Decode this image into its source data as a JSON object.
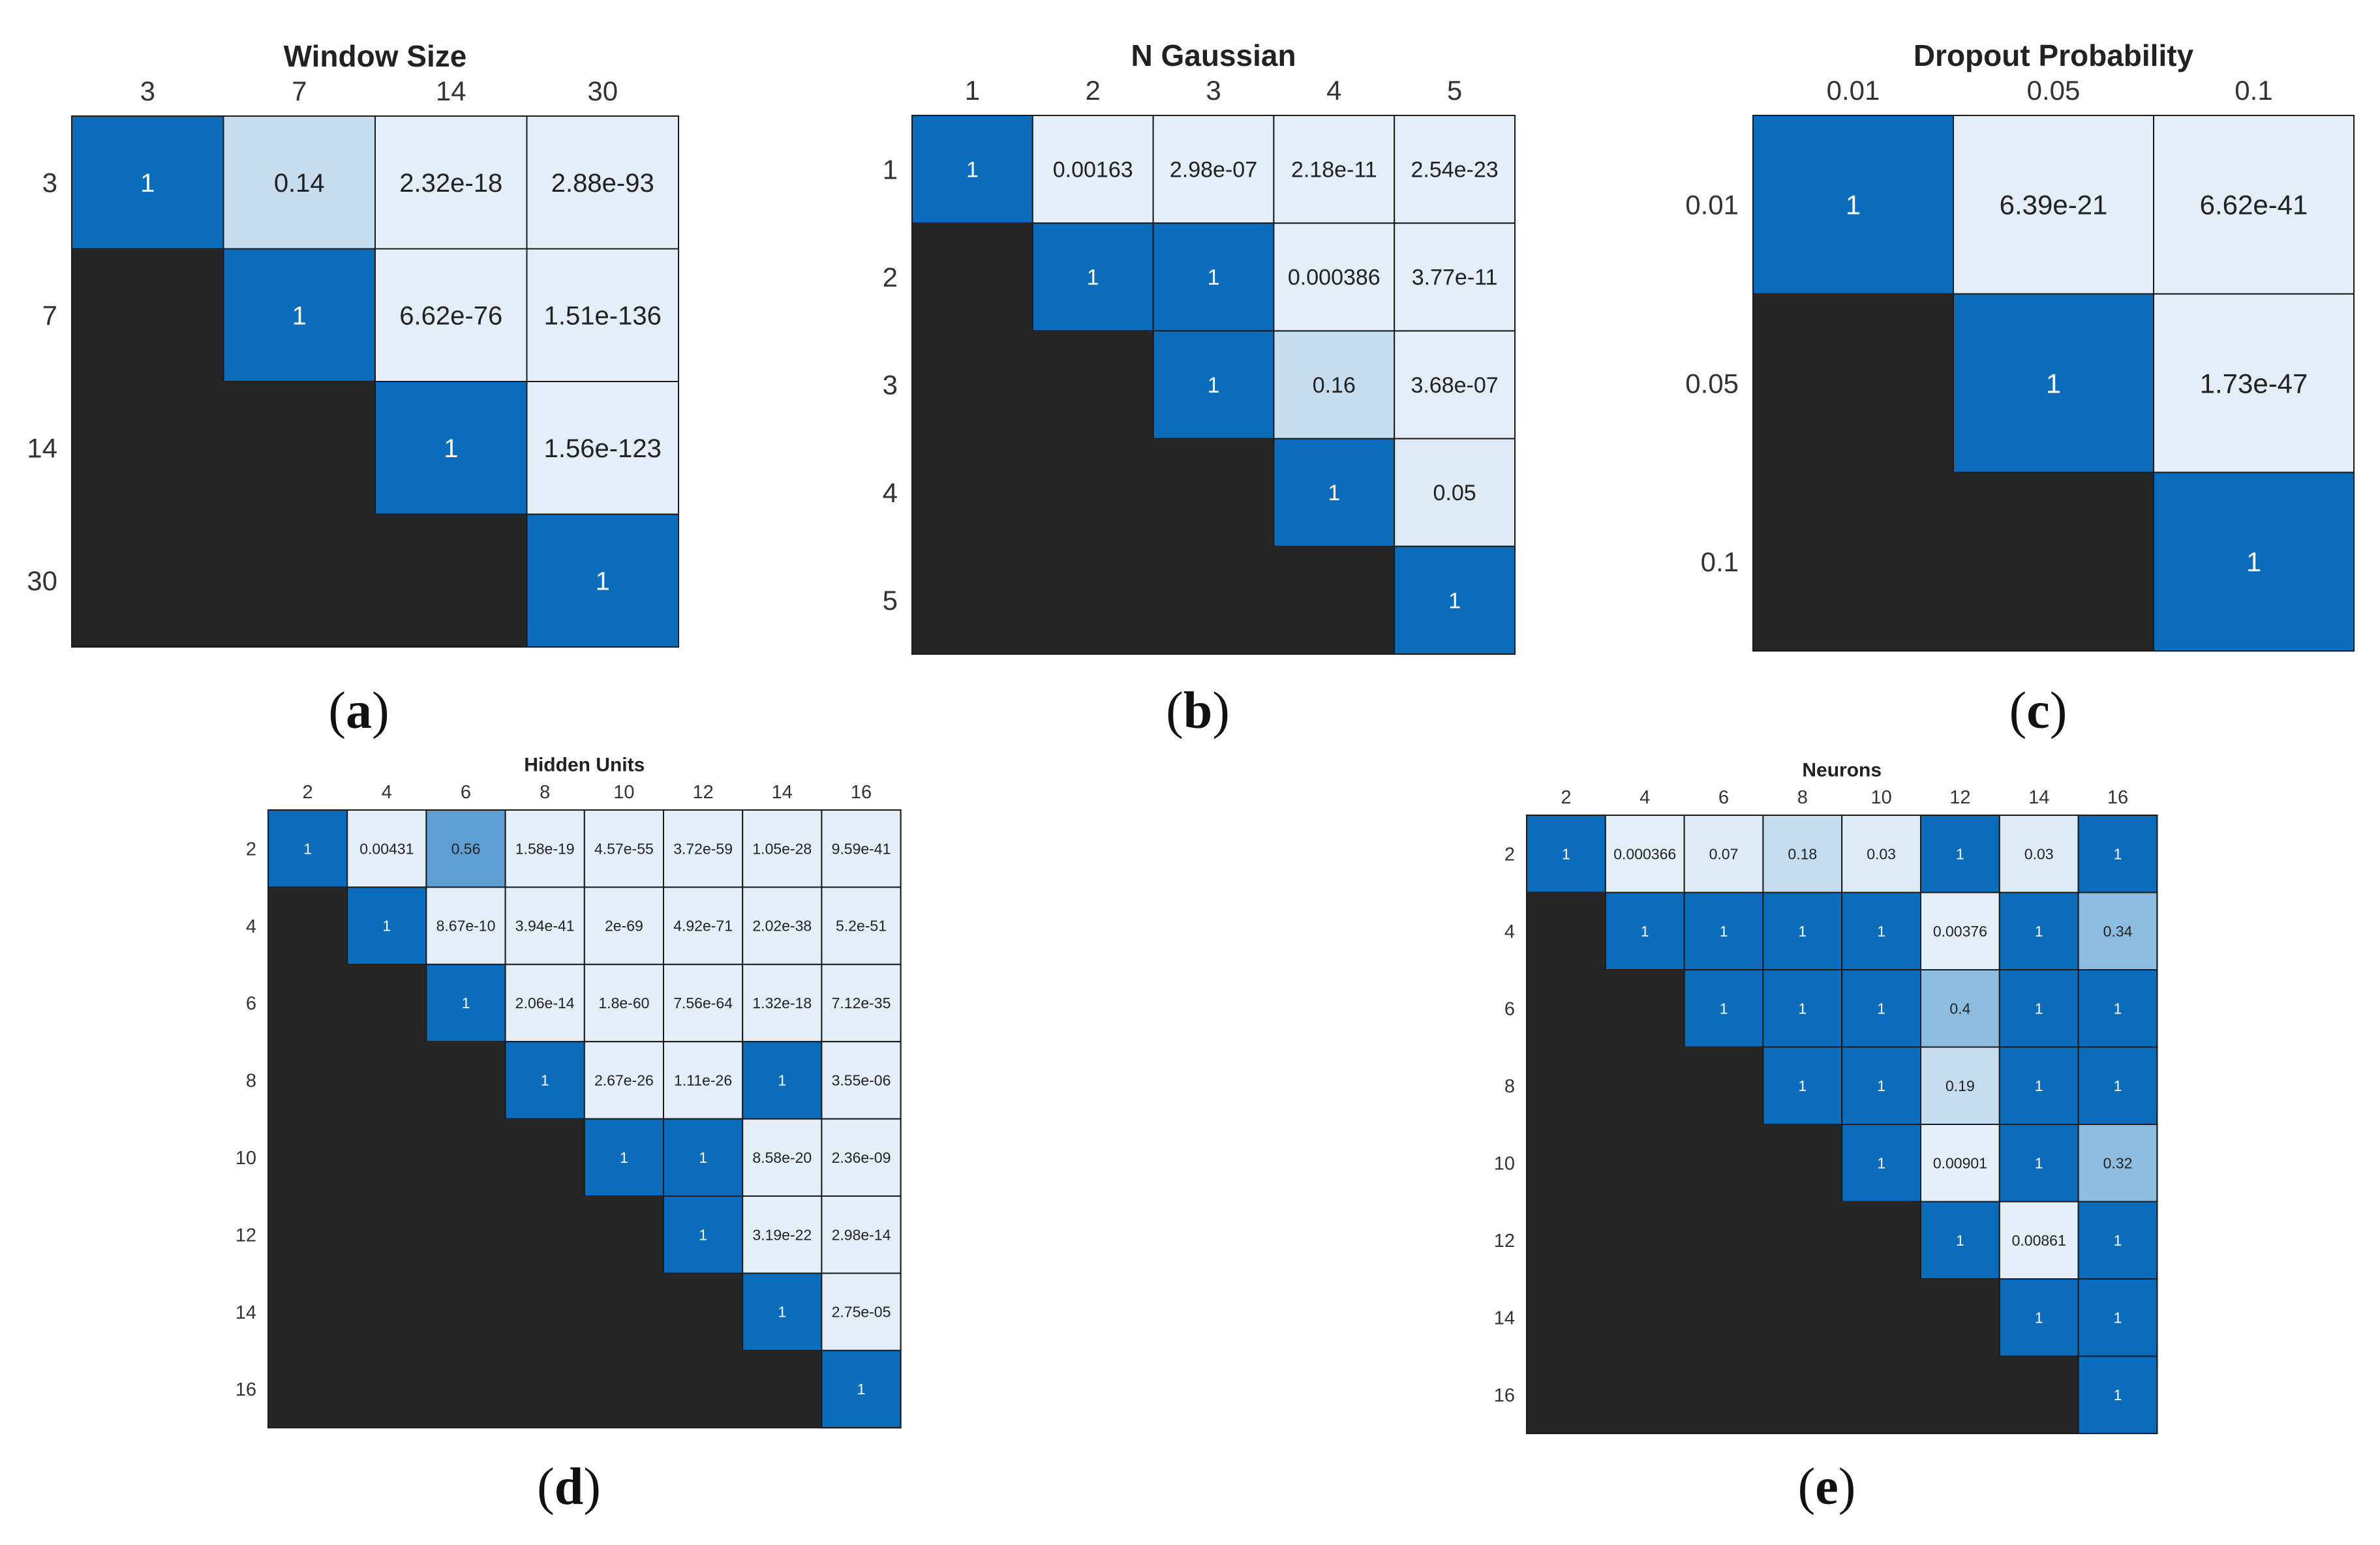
{
  "colors": {
    "lower_triangle": "#262626",
    "grid_line": "#1a1a1a",
    "value_one": "#0b6cbb",
    "value_high": "#5d9fd2",
    "value_mid": "#8cbde0",
    "value_low": "#c6dcef",
    "value_tiny": "#deebf7",
    "value_zero": "#e3eef9",
    "text_dark": "#222222",
    "text_light": "#ffffff"
  },
  "chart_data": [
    {
      "type": "heatmap",
      "panel": "(a)",
      "title": "Window Size",
      "xlabel": "",
      "ylabel": "",
      "labels": [
        "3",
        "7",
        "14",
        "30"
      ],
      "values": [
        [
          "1",
          "0.14",
          "2.32e-18",
          "2.88e-93"
        ],
        [
          "",
          "1",
          "6.62e-76",
          "1.51e-136"
        ],
        [
          "",
          "",
          "1",
          "1.56e-123"
        ],
        [
          "",
          "",
          "",
          "1"
        ]
      ]
    },
    {
      "type": "heatmap",
      "panel": "(b)",
      "title": "N Gaussian",
      "xlabel": "",
      "ylabel": "",
      "labels": [
        "1",
        "2",
        "3",
        "4",
        "5"
      ],
      "values": [
        [
          "1",
          "0.00163",
          "2.98e-07",
          "2.18e-11",
          "2.54e-23"
        ],
        [
          "",
          "1",
          "1",
          "0.000386",
          "3.77e-11"
        ],
        [
          "",
          "",
          "1",
          "0.16",
          "3.68e-07"
        ],
        [
          "",
          "",
          "",
          "1",
          "0.05"
        ],
        [
          "",
          "",
          "",
          "",
          "1"
        ]
      ]
    },
    {
      "type": "heatmap",
      "panel": "(c)",
      "title": "Dropout Probability",
      "xlabel": "",
      "ylabel": "",
      "labels": [
        "0.01",
        "0.05",
        "0.1"
      ],
      "values": [
        [
          "1",
          "6.39e-21",
          "6.62e-41"
        ],
        [
          "",
          "1",
          "1.73e-47"
        ],
        [
          "",
          "",
          "1"
        ]
      ]
    },
    {
      "type": "heatmap",
      "panel": "(d)",
      "title": "Hidden Units",
      "xlabel": "",
      "ylabel": "",
      "labels": [
        "2",
        "4",
        "6",
        "8",
        "10",
        "12",
        "14",
        "16"
      ],
      "values": [
        [
          "1",
          "0.00431",
          "0.56",
          "1.58e-19",
          "4.57e-55",
          "3.72e-59",
          "1.05e-28",
          "9.59e-41"
        ],
        [
          "",
          "1",
          "8.67e-10",
          "3.94e-41",
          "2e-69",
          "4.92e-71",
          "2.02e-38",
          "5.2e-51"
        ],
        [
          "",
          "",
          "1",
          "2.06e-14",
          "1.8e-60",
          "7.56e-64",
          "1.32e-18",
          "7.12e-35"
        ],
        [
          "",
          "",
          "",
          "1",
          "2.67e-26",
          "1.11e-26",
          "1",
          "3.55e-06"
        ],
        [
          "",
          "",
          "",
          "",
          "1",
          "1",
          "8.58e-20",
          "2.36e-09"
        ],
        [
          "",
          "",
          "",
          "",
          "",
          "1",
          "3.19e-22",
          "2.98e-14"
        ],
        [
          "",
          "",
          "",
          "",
          "",
          "",
          "1",
          "2.75e-05"
        ],
        [
          "",
          "",
          "",
          "",
          "",
          "",
          "",
          "1"
        ]
      ]
    },
    {
      "type": "heatmap",
      "panel": "(e)",
      "title": "Neurons",
      "xlabel": "",
      "ylabel": "",
      "labels": [
        "2",
        "4",
        "6",
        "8",
        "10",
        "12",
        "14",
        "16"
      ],
      "values": [
        [
          "1",
          "0.000366",
          "0.07",
          "0.18",
          "0.03",
          "1",
          "0.03",
          "1"
        ],
        [
          "",
          "1",
          "1",
          "1",
          "1",
          "0.00376",
          "1",
          "0.34"
        ],
        [
          "",
          "",
          "1",
          "1",
          "1",
          "0.4",
          "1",
          "1"
        ],
        [
          "",
          "",
          "",
          "1",
          "1",
          "0.19",
          "1",
          "1"
        ],
        [
          "",
          "",
          "",
          "",
          "1",
          "0.00901",
          "1",
          "0.32"
        ],
        [
          "",
          "",
          "",
          "",
          "",
          "1",
          "0.00861",
          "1"
        ],
        [
          "",
          "",
          "",
          "",
          "",
          "",
          "1",
          "1"
        ],
        [
          "",
          "",
          "",
          "",
          "",
          "",
          "",
          "1"
        ]
      ]
    }
  ]
}
